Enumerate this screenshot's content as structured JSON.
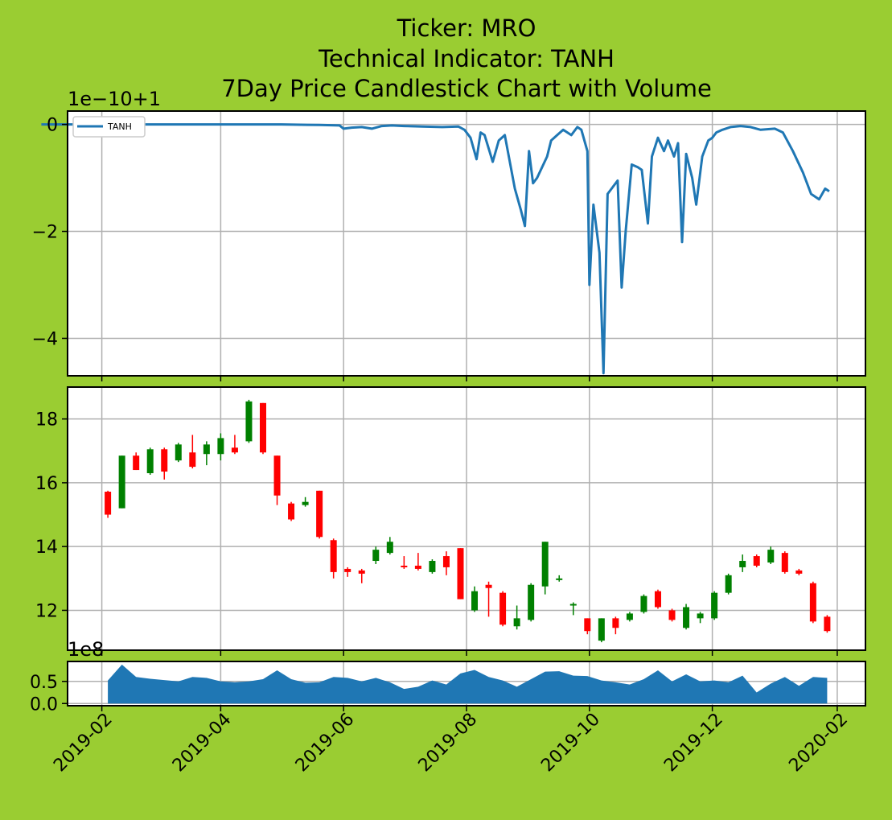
{
  "figure": {
    "background": "#9acd32",
    "title_lines": [
      "Ticker: MRO",
      "Technical Indicator: TANH",
      "7Day Price Candlestick Chart with Volume"
    ]
  },
  "x_axis": {
    "tick_labels": [
      "2019-02",
      "2019-04",
      "2019-06",
      "2019-08",
      "2019-10",
      "2019-12",
      "2020-02"
    ],
    "tick_dates": [
      "2019-02-01",
      "2019-04-01",
      "2019-06-01",
      "2019-08-01",
      "2019-10-01",
      "2019-12-01",
      "2020-02-01"
    ],
    "range": [
      "2019-01-15",
      "2020-02-15"
    ]
  },
  "chart_data": [
    {
      "type": "line",
      "panel": "indicator",
      "offset_label": "1e−10+1",
      "ylim": [
        -4.7,
        0.25
      ],
      "yticks": [
        0,
        -2,
        -4
      ],
      "ytick_labels": [
        "0",
        "−2",
        "−4"
      ],
      "grid": true,
      "legend": {
        "location": "upper-left",
        "entries": [
          "TANH"
        ]
      },
      "series": [
        {
          "name": "TANH",
          "color": "#1f77b4",
          "x": [
            "2019-01-02",
            "2019-03-01",
            "2019-05-01",
            "2019-05-20",
            "2019-05-30",
            "2019-06-01",
            "2019-06-05",
            "2019-06-10",
            "2019-06-15",
            "2019-06-20",
            "2019-06-25",
            "2019-07-01",
            "2019-07-10",
            "2019-07-20",
            "2019-07-28",
            "2019-07-31",
            "2019-08-03",
            "2019-08-06",
            "2019-08-08",
            "2019-08-10",
            "2019-08-14",
            "2019-08-17",
            "2019-08-20",
            "2019-08-25",
            "2019-08-28",
            "2019-08-30",
            "2019-09-01",
            "2019-09-03",
            "2019-09-05",
            "2019-09-10",
            "2019-09-12",
            "2019-09-15",
            "2019-09-18",
            "2019-09-22",
            "2019-09-25",
            "2019-09-27",
            "2019-09-30",
            "2019-10-01",
            "2019-10-03",
            "2019-10-06",
            "2019-10-08",
            "2019-10-10",
            "2019-10-12",
            "2019-10-15",
            "2019-10-17",
            "2019-10-19",
            "2019-10-22",
            "2019-10-25",
            "2019-10-27",
            "2019-10-30",
            "2019-11-01",
            "2019-11-04",
            "2019-11-07",
            "2019-11-09",
            "2019-11-12",
            "2019-11-14",
            "2019-11-16",
            "2019-11-18",
            "2019-11-21",
            "2019-11-23",
            "2019-11-26",
            "2019-11-29",
            "2019-12-01",
            "2019-12-03",
            "2019-12-06",
            "2019-12-10",
            "2019-12-15",
            "2019-12-20",
            "2019-12-25",
            "2020-01-01",
            "2020-01-05",
            "2020-01-10",
            "2020-01-15",
            "2020-01-19",
            "2020-01-23",
            "2020-01-26",
            "2020-01-28"
          ],
          "y": [
            0.0,
            0.0,
            0.0,
            -0.01,
            -0.02,
            -0.08,
            -0.06,
            -0.05,
            -0.08,
            -0.03,
            -0.02,
            -0.03,
            -0.04,
            -0.05,
            -0.04,
            -0.1,
            -0.25,
            -0.65,
            -0.15,
            -0.2,
            -0.7,
            -0.3,
            -0.2,
            -1.2,
            -1.6,
            -1.9,
            -0.5,
            -1.1,
            -1.0,
            -0.6,
            -0.3,
            -0.2,
            -0.1,
            -0.2,
            -0.05,
            -0.1,
            -0.5,
            -3.0,
            -1.5,
            -2.4,
            -4.65,
            -1.3,
            -1.2,
            -1.05,
            -3.05,
            -2.0,
            -0.75,
            -0.8,
            -0.85,
            -1.85,
            -0.6,
            -0.25,
            -0.5,
            -0.3,
            -0.6,
            -0.35,
            -2.2,
            -0.55,
            -1.0,
            -1.5,
            -0.6,
            -0.3,
            -0.25,
            -0.15,
            -0.1,
            -0.05,
            -0.03,
            -0.05,
            -0.1,
            -0.08,
            -0.15,
            -0.5,
            -0.9,
            -1.3,
            -1.4,
            -1.2,
            -1.25
          ]
        }
      ]
    },
    {
      "type": "candlestick",
      "panel": "price",
      "ylim": [
        10.75,
        19.0
      ],
      "yticks": [
        12,
        14,
        16,
        18
      ],
      "ytick_labels": [
        "12",
        "14",
        "16",
        "18"
      ],
      "grid": true,
      "up_color": "#008000",
      "down_color": "#ff0000",
      "dates": [
        "2019-02-04",
        "2019-02-11",
        "2019-02-18",
        "2019-02-25",
        "2019-03-04",
        "2019-03-11",
        "2019-03-18",
        "2019-03-25",
        "2019-04-01",
        "2019-04-08",
        "2019-04-15",
        "2019-04-22",
        "2019-04-29",
        "2019-05-06",
        "2019-05-13",
        "2019-05-20",
        "2019-05-27",
        "2019-06-03",
        "2019-06-10",
        "2019-06-17",
        "2019-06-24",
        "2019-07-01",
        "2019-07-08",
        "2019-07-15",
        "2019-07-22",
        "2019-07-29",
        "2019-08-05",
        "2019-08-12",
        "2019-08-19",
        "2019-08-26",
        "2019-09-02",
        "2019-09-09",
        "2019-09-16",
        "2019-09-23",
        "2019-09-30",
        "2019-10-07",
        "2019-10-14",
        "2019-10-21",
        "2019-10-28",
        "2019-11-04",
        "2019-11-11",
        "2019-11-18",
        "2019-11-25",
        "2019-12-02",
        "2019-12-09",
        "2019-12-16",
        "2019-12-23",
        "2019-12-30",
        "2020-01-06",
        "2020-01-13",
        "2020-01-20",
        "2020-01-27"
      ],
      "open": [
        15.72,
        15.2,
        16.85,
        16.3,
        17.05,
        16.7,
        16.95,
        16.9,
        16.9,
        17.1,
        17.3,
        18.5,
        16.85,
        15.35,
        15.3,
        15.75,
        14.2,
        13.3,
        13.25,
        13.55,
        13.8,
        13.4,
        13.4,
        13.2,
        13.7,
        13.95,
        12.0,
        12.8,
        12.55,
        11.5,
        11.7,
        12.75,
        12.95,
        12.15,
        11.75,
        11.05,
        11.75,
        11.7,
        11.95,
        12.6,
        12.0,
        11.45,
        11.75,
        11.75,
        12.55,
        13.35,
        13.7,
        13.5,
        13.8,
        13.25,
        12.85,
        11.8
      ],
      "close": [
        15.0,
        16.85,
        16.4,
        17.05,
        16.35,
        17.2,
        16.5,
        17.2,
        17.4,
        16.95,
        18.55,
        16.95,
        15.6,
        14.85,
        15.4,
        14.3,
        13.2,
        13.2,
        13.15,
        13.9,
        14.15,
        13.35,
        13.3,
        13.55,
        13.35,
        12.35,
        12.6,
        12.7,
        11.55,
        11.75,
        12.8,
        14.15,
        13.0,
        12.2,
        11.35,
        11.75,
        11.45,
        11.9,
        12.45,
        12.1,
        11.7,
        12.1,
        11.9,
        12.55,
        13.1,
        13.55,
        13.4,
        13.9,
        13.2,
        13.15,
        11.65,
        11.35
      ],
      "high": [
        15.75,
        16.85,
        16.95,
        17.1,
        17.1,
        17.25,
        17.5,
        17.3,
        17.55,
        17.5,
        18.6,
        18.5,
        16.85,
        15.4,
        15.55,
        15.75,
        14.25,
        13.35,
        13.3,
        14.0,
        14.3,
        13.7,
        13.8,
        13.6,
        13.85,
        13.95,
        12.75,
        12.9,
        12.6,
        12.15,
        12.85,
        14.15,
        13.1,
        12.25,
        11.75,
        11.75,
        11.8,
        11.95,
        12.5,
        12.65,
        12.05,
        12.2,
        11.95,
        12.6,
        13.15,
        13.75,
        13.75,
        14.0,
        13.85,
        13.3,
        12.9,
        11.85
      ],
      "low": [
        14.9,
        15.2,
        16.4,
        16.25,
        16.1,
        16.65,
        16.45,
        16.55,
        16.7,
        16.9,
        17.25,
        16.9,
        15.3,
        14.8,
        15.25,
        14.25,
        13.0,
        13.05,
        12.85,
        13.45,
        13.75,
        13.3,
        13.25,
        13.15,
        13.1,
        12.35,
        11.95,
        11.8,
        11.5,
        11.4,
        11.65,
        12.5,
        12.9,
        11.85,
        11.25,
        11.0,
        11.25,
        11.65,
        11.9,
        12.05,
        11.65,
        11.4,
        11.6,
        11.7,
        12.5,
        13.2,
        13.35,
        13.45,
        13.15,
        13.1,
        11.6,
        11.3
      ]
    },
    {
      "type": "area",
      "panel": "volume",
      "color": "#1f77b4",
      "offset_label": "1e8",
      "ylim": [
        -0.05,
        0.95
      ],
      "yticks": [
        0.0,
        0.5
      ],
      "ytick_labels": [
        "0.0",
        "0.5"
      ],
      "grid": true,
      "x": [
        "2019-02-04",
        "2019-02-11",
        "2019-02-18",
        "2019-02-25",
        "2019-03-04",
        "2019-03-11",
        "2019-03-18",
        "2019-03-25",
        "2019-04-01",
        "2019-04-08",
        "2019-04-15",
        "2019-04-22",
        "2019-04-29",
        "2019-05-06",
        "2019-05-13",
        "2019-05-20",
        "2019-05-27",
        "2019-06-03",
        "2019-06-10",
        "2019-06-17",
        "2019-06-24",
        "2019-07-01",
        "2019-07-08",
        "2019-07-15",
        "2019-07-22",
        "2019-07-29",
        "2019-08-05",
        "2019-08-12",
        "2019-08-19",
        "2019-08-26",
        "2019-09-02",
        "2019-09-09",
        "2019-09-16",
        "2019-09-23",
        "2019-09-30",
        "2019-10-07",
        "2019-10-14",
        "2019-10-21",
        "2019-10-28",
        "2019-11-04",
        "2019-11-11",
        "2019-11-18",
        "2019-11-25",
        "2019-12-02",
        "2019-12-09",
        "2019-12-16",
        "2019-12-23",
        "2019-12-30",
        "2020-01-06",
        "2020-01-13",
        "2020-01-20",
        "2020-01-27"
      ],
      "values": [
        0.52,
        0.88,
        0.6,
        0.56,
        0.53,
        0.5,
        0.6,
        0.58,
        0.5,
        0.48,
        0.5,
        0.55,
        0.75,
        0.55,
        0.47,
        0.48,
        0.6,
        0.58,
        0.5,
        0.58,
        0.48,
        0.33,
        0.38,
        0.52,
        0.43,
        0.68,
        0.76,
        0.6,
        0.52,
        0.38,
        0.55,
        0.72,
        0.73,
        0.63,
        0.62,
        0.52,
        0.48,
        0.43,
        0.55,
        0.75,
        0.5,
        0.66,
        0.5,
        0.52,
        0.48,
        0.63,
        0.25,
        0.45,
        0.6,
        0.4,
        0.6,
        0.58
      ]
    }
  ]
}
